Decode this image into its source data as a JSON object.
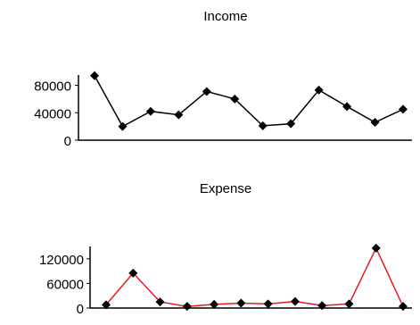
{
  "chart_data": [
    {
      "type": "line",
      "title": "Income",
      "xlabel": "",
      "ylabel": "",
      "ylim": [
        0,
        95000
      ],
      "yticks": [
        0,
        40000,
        80000
      ],
      "x": [
        1,
        2,
        3,
        4,
        5,
        6,
        7,
        8,
        9,
        10,
        11,
        12
      ],
      "series": [
        {
          "values": [
            94000,
            20000,
            42000,
            37000,
            71000,
            60000,
            21000,
            24000,
            73000,
            49000,
            26000,
            45000
          ]
        }
      ],
      "line_color": "#000000",
      "marker_color": "#000000",
      "grid": false
    },
    {
      "type": "line",
      "title": "Expense",
      "xlabel": "",
      "ylabel": "",
      "ylim": [
        0,
        150000
      ],
      "yticks": [
        0,
        60000,
        120000
      ],
      "x": [
        1,
        2,
        3,
        4,
        5,
        6,
        7,
        8,
        9,
        10,
        11,
        12
      ],
      "series": [
        {
          "values": [
            8000,
            85000,
            15000,
            4000,
            9000,
            12000,
            10000,
            16000,
            6000,
            10000,
            146000,
            4000
          ]
        }
      ],
      "line_color": "#e8191c",
      "marker_color": "#000000",
      "grid": false
    }
  ]
}
